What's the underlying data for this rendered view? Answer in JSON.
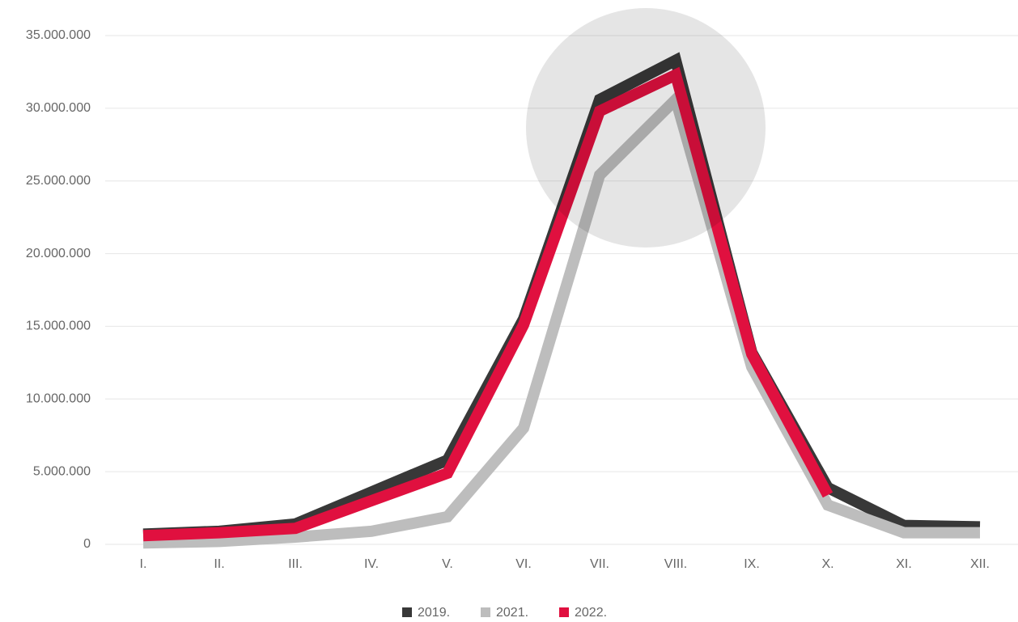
{
  "chart_data": {
    "type": "line",
    "categories": [
      "I.",
      "II.",
      "III.",
      "IV.",
      "V.",
      "VI.",
      "VII.",
      "VIII.",
      "IX.",
      "X.",
      "XI.",
      "XII."
    ],
    "series": [
      {
        "name": "2019.",
        "color": "#383838",
        "values": [
          700000,
          900000,
          1400000,
          3600000,
          5800000,
          15500000,
          30600000,
          33300000,
          13200000,
          3900000,
          1300000,
          1200000
        ]
      },
      {
        "name": "2021.",
        "color": "#bdbdbd",
        "values": [
          100000,
          200000,
          500000,
          900000,
          1900000,
          8000000,
          25400000,
          30600000,
          12200000,
          2700000,
          800000,
          800000
        ]
      },
      {
        "name": "2022.",
        "color": "#e0103f",
        "values": [
          600000,
          800000,
          1100000,
          3000000,
          4900000,
          15100000,
          29800000,
          32300000,
          13100000,
          3400000,
          null,
          null
        ]
      }
    ],
    "ylim": [
      0,
      35000000
    ],
    "yticks": [
      0,
      {
        "value": 5000000,
        "label": "5.000.000"
      },
      {
        "value": 10000000,
        "label": "10.000.000"
      },
      {
        "value": 15000000,
        "label": "15.000.000"
      },
      {
        "value": 20000000,
        "label": "20.000.000"
      },
      {
        "value": 25000000,
        "label": "25.000.000"
      },
      {
        "value": 30000000,
        "label": "30.000.000"
      },
      {
        "value": 35000000,
        "label": "35.000.000"
      }
    ],
    "grid": true
  }
}
